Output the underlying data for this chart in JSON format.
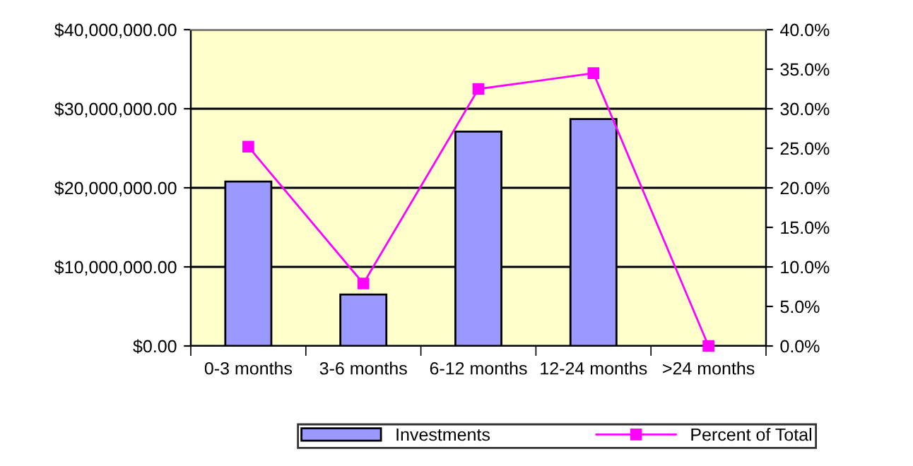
{
  "chart_data": {
    "type": "bar",
    "categories": [
      "0-3 months",
      "3-6 months",
      "6-12 months",
      "12-24 months",
      ">24 months"
    ],
    "series": [
      {
        "name": "Investments",
        "color": "#9999ff",
        "values": [
          20800000,
          6500000,
          27100000,
          28700000,
          0
        ]
      },
      {
        "name": "Percent of Total",
        "type": "line",
        "axis": "y2",
        "color": "#ff00ff",
        "marker": "square",
        "values": [
          25.2,
          7.9,
          32.5,
          34.5,
          0
        ]
      }
    ],
    "ylim": [
      0,
      40000000
    ],
    "yticks": [
      {
        "value": 0,
        "label": "$0.00"
      },
      {
        "value": 10000000,
        "label": "$10,000,000.00"
      },
      {
        "value": 20000000,
        "label": "$20,000,000.00"
      },
      {
        "value": 30000000,
        "label": "$30,000,000.00"
      },
      {
        "value": 40000000,
        "label": "$40,000,000.00"
      }
    ],
    "y2lim": [
      0,
      40
    ],
    "y2ticks": [
      {
        "value": 0,
        "label": "0.0%"
      },
      {
        "value": 5,
        "label": "5.0%"
      },
      {
        "value": 10,
        "label": "10.0%"
      },
      {
        "value": 15,
        "label": "15.0%"
      },
      {
        "value": 20,
        "label": "20.0%"
      },
      {
        "value": 25,
        "label": "25.0%"
      },
      {
        "value": 30,
        "label": "30.0%"
      },
      {
        "value": 35,
        "label": "35.0%"
      },
      {
        "value": 40,
        "label": "40.0%"
      }
    ],
    "grid": "y",
    "legend": "bottom"
  }
}
